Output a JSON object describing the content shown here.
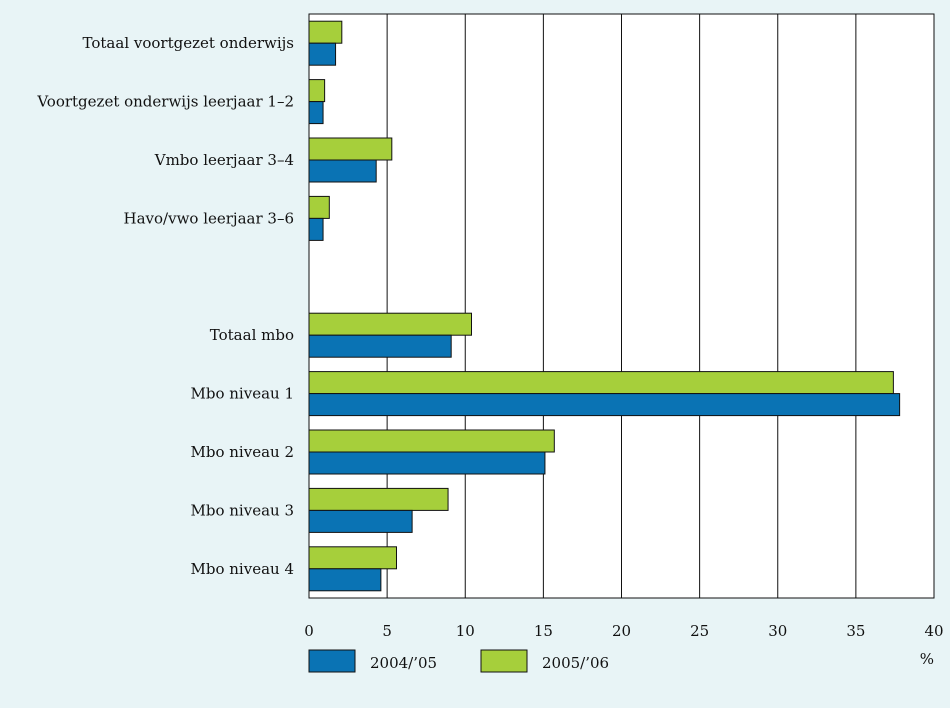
{
  "chart_data": {
    "type": "bar",
    "orientation": "horizontal",
    "unit_label": "%",
    "xlim": [
      0,
      40
    ],
    "xticks": [
      0,
      5,
      10,
      15,
      20,
      25,
      30,
      35,
      40
    ],
    "grid": "vertical",
    "legend_position": "bottom-left",
    "categories": [
      "Totaal voortgezet onderwijs",
      "Voortgezet onderwijs leerjaar 1–2",
      "Vmbo leerjaar 3–4",
      "Havo/vwo leerjaar 3–6",
      "",
      "Totaal mbo",
      "Mbo niveau 1",
      "Mbo niveau 2",
      "Mbo niveau 3",
      "Mbo niveau 4"
    ],
    "series": [
      {
        "name": "2004/’05",
        "color": "#0a73b4",
        "values": [
          1.7,
          0.9,
          4.3,
          0.9,
          null,
          9.1,
          37.8,
          15.1,
          6.6,
          4.6
        ]
      },
      {
        "name": "2005/’06",
        "color": "#a6cf3b",
        "values": [
          2.1,
          1.0,
          5.3,
          1.3,
          null,
          10.4,
          37.4,
          15.7,
          8.9,
          5.6
        ]
      }
    ]
  }
}
